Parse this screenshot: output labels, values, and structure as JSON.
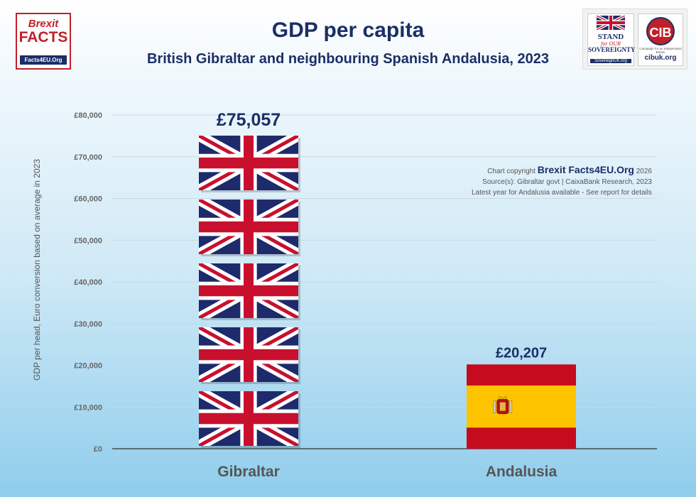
{
  "header": {
    "title": "GDP per capita",
    "subtitle": "British Gibraltar and neighbouring Spanish Andalusia, 2023"
  },
  "logo_left": {
    "line1": "Brexit",
    "line2": "FACTS",
    "line3": "Facts4EU.Org"
  },
  "logo_right": {
    "sov_line1": "STAND",
    "sov_line2": "for OUR",
    "sov_line3": "SOVEREIGNTY",
    "sov_url": "SovereignUK.org",
    "cib_mark": "CIB",
    "cib_tagline": "Campaign for an Independent Britain",
    "cib_url": "cibuk.org"
  },
  "notes": {
    "copyright_prefix": "Chart copyright",
    "copyright_brand": "Brexit Facts4EU.Org",
    "copyright_year": "2026",
    "sources": "Source(s): Gibraltar govt | CaixaBank Research, 2023",
    "caveat": "Latest year for Andalusia available - See report for details"
  },
  "colors": {
    "navy": "#1b2f66",
    "uk_red": "#c8102e",
    "uk_blue": "#1d2a6b",
    "es_red": "#c60b1e",
    "es_yellow": "#ffc400"
  },
  "chart_data": {
    "type": "bar",
    "categories": [
      "Gibraltar",
      "Andalusia"
    ],
    "values": [
      75057,
      20207
    ],
    "data_labels": [
      "£75,057",
      "£20,207"
    ],
    "bar_fill": [
      "uk-flag-icon",
      "spain-flag-icon"
    ],
    "ylabel": "GDP per head, Euro conversion based on average in 2023",
    "xlabel": "",
    "ylim": [
      0,
      80000
    ],
    "yticks": [
      0,
      10000,
      20000,
      30000,
      40000,
      50000,
      60000,
      70000,
      80000
    ],
    "ytick_labels": [
      "£0",
      "£10,000",
      "£20,000",
      "£30,000",
      "£40,000",
      "£50,000",
      "£60,000",
      "£70,000",
      "£80,000"
    ],
    "grid": true,
    "legend": "none"
  }
}
